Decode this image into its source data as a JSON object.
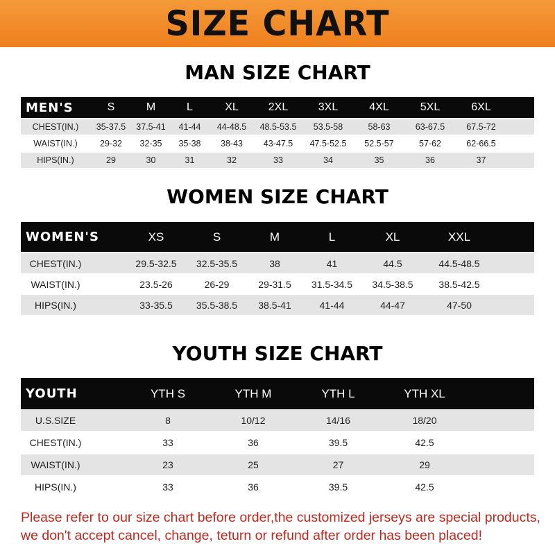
{
  "banner_title": "SIZE CHART",
  "men": {
    "title": "MAN SIZE CHART",
    "header_label": "MEN'S",
    "sizes": [
      "S",
      "M",
      "L",
      "XL",
      "2XL",
      "3XL",
      "4XL",
      "5XL",
      "6XL"
    ],
    "rows": [
      {
        "label": "CHEST(IN.)",
        "values": [
          "35-37.5",
          "37.5-41",
          "41-44",
          "44-48.5",
          "48.5-53.5",
          "53.5-58",
          "58-63",
          "63-67.5",
          "67.5-72"
        ]
      },
      {
        "label": "WAIST(IN.)",
        "values": [
          "29-32",
          "32-35",
          "35-38",
          "38-43",
          "43-47.5",
          "47.5-52.5",
          "52.5-57",
          "57-62",
          "62-66.5"
        ]
      },
      {
        "label": "HIPS(IN.)",
        "values": [
          "29",
          "30",
          "31",
          "32",
          "33",
          "34",
          "35",
          "36",
          "37"
        ]
      }
    ]
  },
  "women": {
    "title": "WOMEN SIZE CHART",
    "header_label": "WOMEN'S",
    "sizes": [
      "XS",
      "S",
      "M",
      "L",
      "XL",
      "XXL"
    ],
    "rows": [
      {
        "label": "CHEST(IN.)",
        "values": [
          "29.5-32.5",
          "32.5-35.5",
          "38",
          "41",
          "44.5",
          "44.5-48.5"
        ]
      },
      {
        "label": "WAIST(IN.)",
        "values": [
          "23.5-26",
          "26-29",
          "29-31.5",
          "31.5-34.5",
          "34.5-38.5",
          "38.5-42.5"
        ]
      },
      {
        "label": "HIPS(IN.)",
        "values": [
          "33-35.5",
          "35.5-38.5",
          "38.5-41",
          "41-44",
          "44-47",
          "47-50"
        ]
      }
    ]
  },
  "youth": {
    "title": "YOUTH SIZE CHART",
    "header_label": "YOUTH",
    "sizes": [
      "YTH S",
      "YTH M",
      "YTH L",
      "YTH XL"
    ],
    "rows": [
      {
        "label": "U.S.SIZE",
        "values": [
          "8",
          "10/12",
          "14/16",
          "18/20"
        ]
      },
      {
        "label": "CHEST(IN.)",
        "values": [
          "33",
          "36",
          "39.5",
          "42.5"
        ]
      },
      {
        "label": "WAIST(IN.)",
        "values": [
          "23",
          "25",
          "27",
          "29"
        ]
      },
      {
        "label": "HIPS(IN.)",
        "values": [
          "33",
          "36",
          "39.5",
          "42.5"
        ]
      }
    ]
  },
  "notice": {
    "line1": "Please refer to our size chart before order,the customized jerseys are special products,",
    "line2": "we don't accept cancel, change, teturn or refund after order has been placed!"
  },
  "colors": {
    "banner": "#F08A24",
    "header_row": "#0A0A0A",
    "stripe": "#E4E4E4",
    "notice": "#C0281E"
  }
}
